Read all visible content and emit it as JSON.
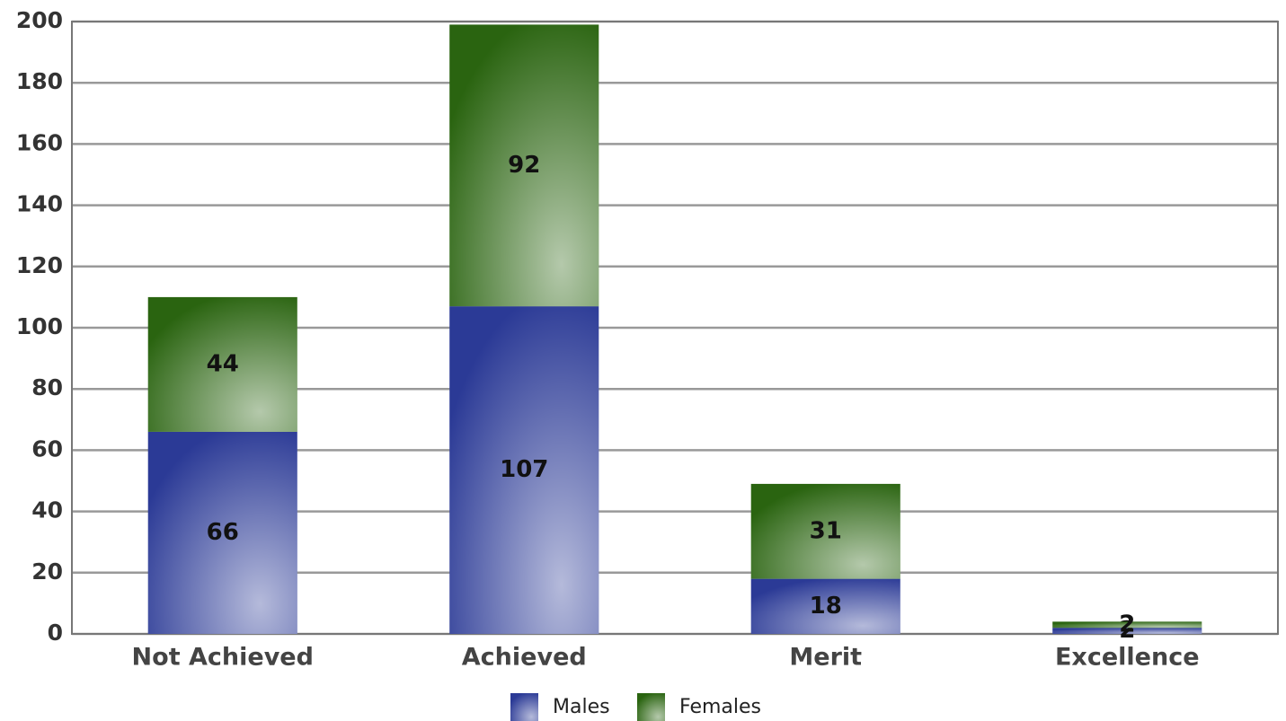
{
  "chart_data": {
    "type": "stacked_bar",
    "categories": [
      "Not Achieved",
      "Achieved",
      "Merit",
      "Excellence"
    ],
    "series": [
      {
        "name": "Males",
        "color": "#2b3a96",
        "values": [
          66,
          107,
          18,
          2
        ]
      },
      {
        "name": "Females",
        "color": "#2a6410",
        "values": [
          44,
          92,
          31,
          2
        ]
      }
    ],
    "ylim": [
      0,
      200
    ],
    "yticks": [
      0,
      20,
      40,
      60,
      80,
      100,
      120,
      140,
      160,
      180,
      200
    ],
    "grid": true,
    "legend": "bottom"
  }
}
